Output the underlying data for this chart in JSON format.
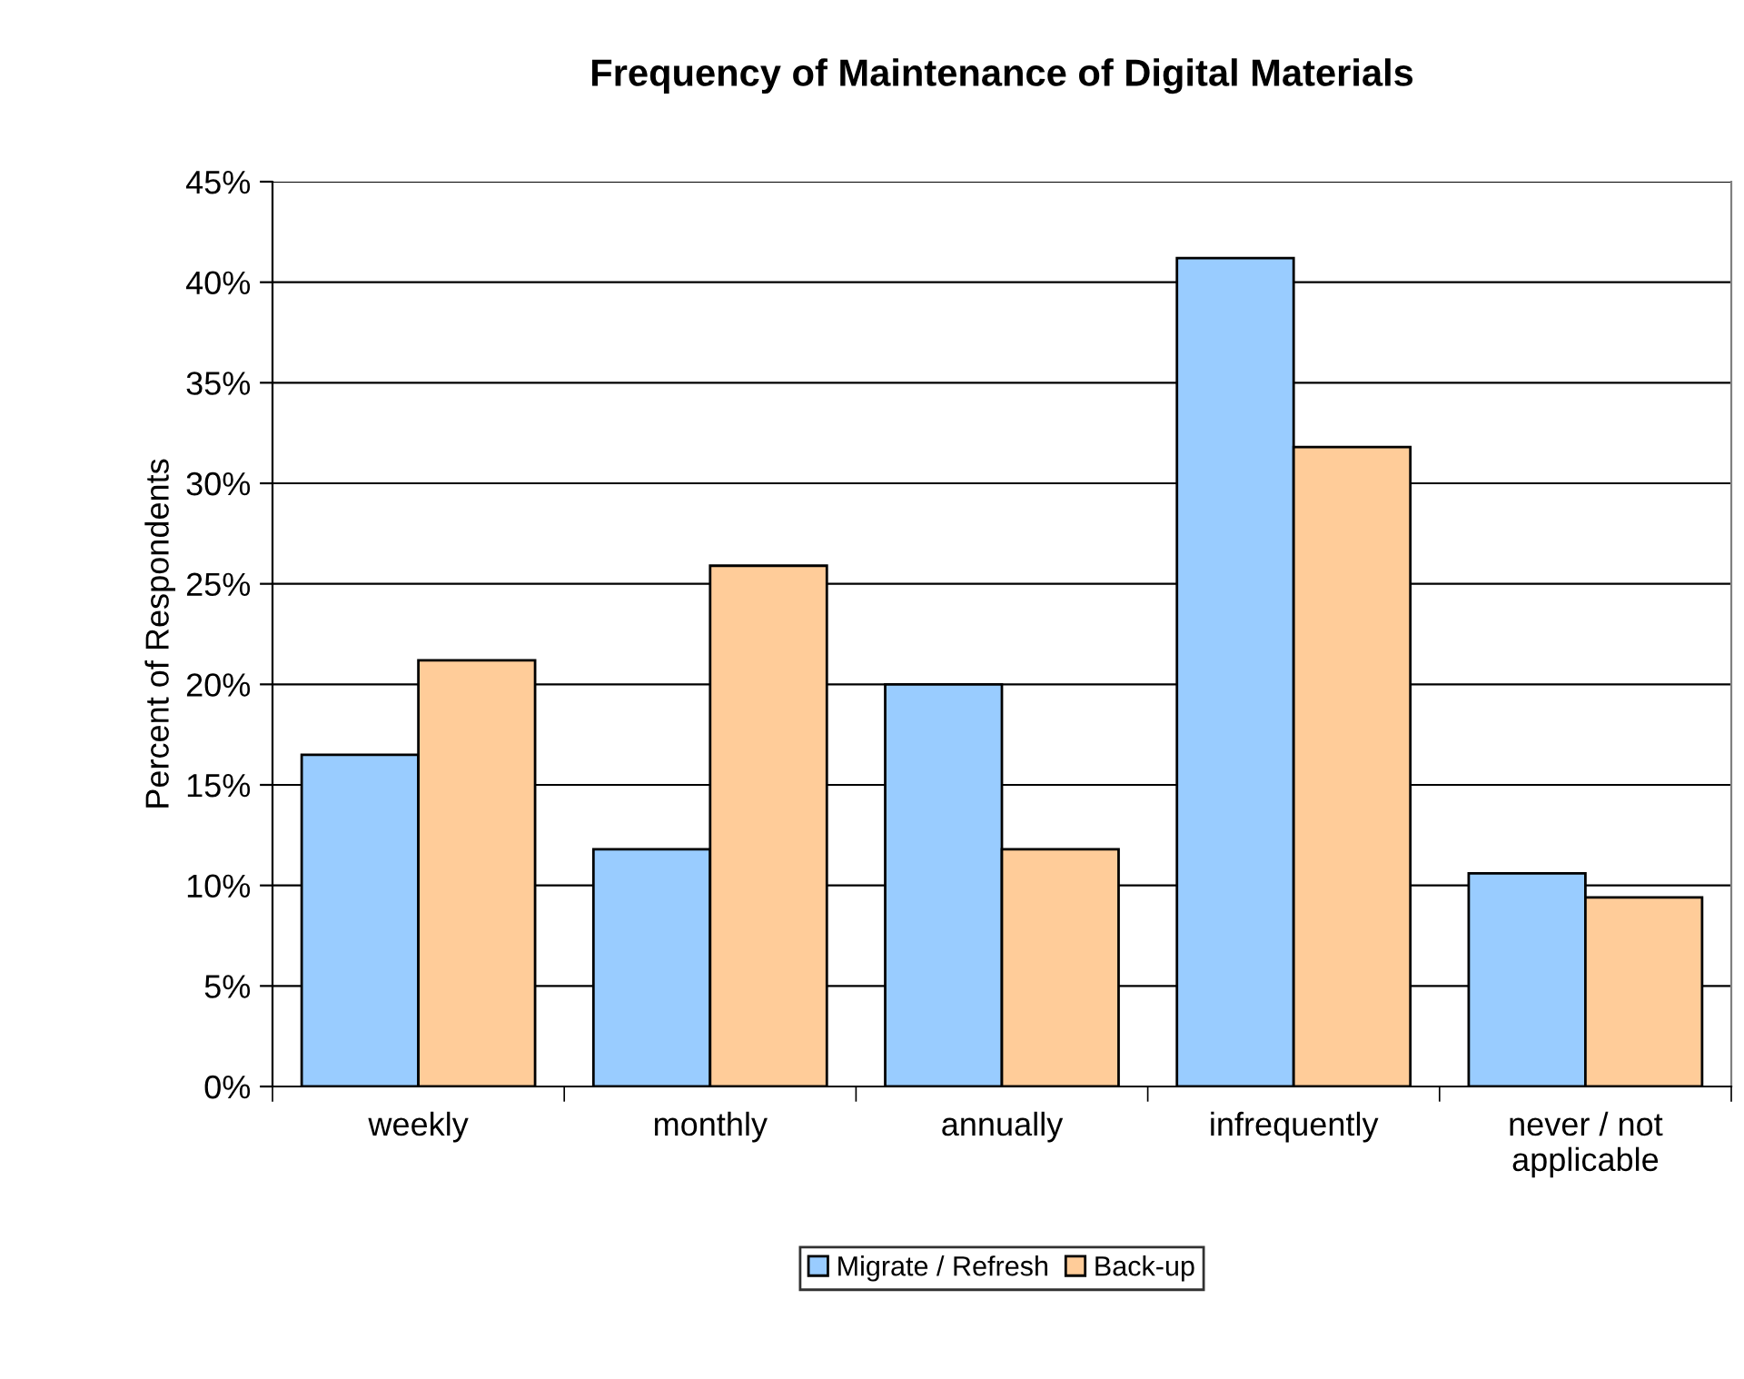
{
  "chart_data": {
    "type": "bar",
    "title": "Frequency of Maintenance of Digital Materials",
    "ylabel": "Percent of Respondents",
    "categories": [
      "weekly",
      "monthly",
      "annually",
      "infrequently",
      "never / not\napplicable"
    ],
    "series": [
      {
        "name": "Migrate / Refresh",
        "color": "#99ccff",
        "values": [
          16.5,
          11.8,
          20.0,
          41.2,
          10.6
        ]
      },
      {
        "name": "Back-up",
        "color": "#ffcc99",
        "values": [
          21.2,
          25.9,
          11.8,
          31.8,
          9.4
        ]
      }
    ],
    "ylim": [
      0,
      45
    ],
    "yticks": [
      {
        "value": 0,
        "label": "0%"
      },
      {
        "value": 5,
        "label": "5%"
      },
      {
        "value": 10,
        "label": "10%"
      },
      {
        "value": 15,
        "label": "15%"
      },
      {
        "value": 20,
        "label": "20%"
      },
      {
        "value": 25,
        "label": "25%"
      },
      {
        "value": 30,
        "label": "30%"
      },
      {
        "value": 35,
        "label": "35%"
      },
      {
        "value": 40,
        "label": "40%"
      },
      {
        "value": 45,
        "label": "45%"
      }
    ],
    "grid": "y",
    "legend": "bottom"
  }
}
